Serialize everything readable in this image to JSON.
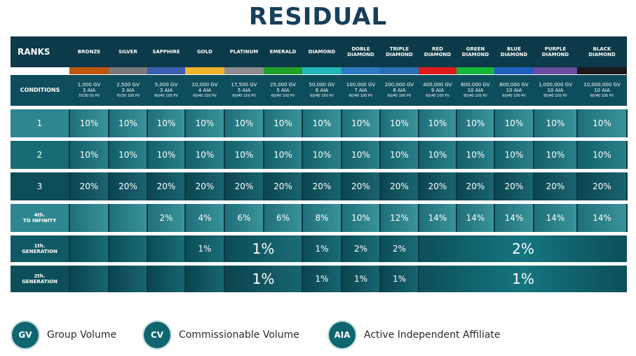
{
  "title": "RESIDUAL",
  "header": {
    "ranks_label": "RANKS",
    "ranks": [
      {
        "name": [
          "BRONZE"
        ],
        "color": "#c0550e"
      },
      {
        "name": [
          "SILVER"
        ],
        "color": "#7a7a7a"
      },
      {
        "name": [
          "SAPPHIRE"
        ],
        "color": "#3a5fb0"
      },
      {
        "name": [
          "GOLD"
        ],
        "color": "#f0b429"
      },
      {
        "name": [
          "PLATINUM"
        ],
        "color": "#8c8c8c"
      },
      {
        "name": [
          "EMERALD"
        ],
        "color": "#1fa12a"
      },
      {
        "name": [
          "DIAMOND"
        ],
        "color": "#23b6b8"
      },
      {
        "name": [
          "DOBLE",
          "DIAMOND"
        ],
        "color": "#2c7bc4"
      },
      {
        "name": [
          "TRIPLE",
          "DIAMOND"
        ],
        "color": "#2c6fb8"
      },
      {
        "name": [
          "RED",
          "DIAMOND"
        ],
        "color": "#e01a1a"
      },
      {
        "name": [
          "GREEN",
          "DIAMOND"
        ],
        "color": "#16b83a"
      },
      {
        "name": [
          "BLUE",
          "DIAMOND"
        ],
        "color": "#1f5fc0"
      },
      {
        "name": [
          "PURPLE",
          "DIAMOND"
        ],
        "color": "#6a4ca0"
      },
      {
        "name": [
          "BLACK",
          "DIAMOND"
        ],
        "color": "#1a1a1a"
      }
    ]
  },
  "conditions": {
    "label": "CONDITIONS",
    "items": [
      {
        "gv": "1,000 GV",
        "aia": "3 AIA",
        "pv": "70/30 50 PV"
      },
      {
        "gv": "2,500 GV",
        "aia": "3 AIA",
        "pv": "70/30 100 PV"
      },
      {
        "gv": "5,000 GV",
        "aia": "3 AIA",
        "pv": "60/40 100 PV"
      },
      {
        "gv": "10,000 GV",
        "aia": "4 AIA",
        "pv": "60/40 100 PV"
      },
      {
        "gv": "17,500 GV",
        "aia": "5 AIA",
        "pv": "60/40 100 PV"
      },
      {
        "gv": "25,000 GV",
        "aia": "5 AIA",
        "pv": "60/40 100 PV"
      },
      {
        "gv": "50,000 GV",
        "aia": "6 AIA",
        "pv": "60/40 100 PV"
      },
      {
        "gv": "100,000 GV",
        "aia": "7 AIA",
        "pv": "60/40 100 PV"
      },
      {
        "gv": "200,000 GV",
        "aia": "8 AIA",
        "pv": "60/40 100 PV"
      },
      {
        "gv": "400,000 GV",
        "aia": "9 AIA",
        "pv": "60/40 100 PV"
      },
      {
        "gv": "600,000 GV",
        "aia": "10 AIA",
        "pv": "60/40 100 PV"
      },
      {
        "gv": "800,000 GV",
        "aia": "10 AIA",
        "pv": "60/40 100 PV"
      },
      {
        "gv": "1,000,000 GV",
        "aia": "10 AIA",
        "pv": "60/40 100 PV"
      },
      {
        "gv": "10,000,000 GV",
        "aia": "10 AIA",
        "pv": "60/40 100 PV"
      }
    ]
  },
  "rows": {
    "level1": {
      "label": "1",
      "values": [
        "10%",
        "10%",
        "10%",
        "10%",
        "10%",
        "10%",
        "10%",
        "10%",
        "10%",
        "10%",
        "10%",
        "10%",
        "10%",
        "10%"
      ]
    },
    "level2": {
      "label": "2",
      "values": [
        "10%",
        "10%",
        "10%",
        "10%",
        "10%",
        "10%",
        "10%",
        "10%",
        "10%",
        "10%",
        "10%",
        "10%",
        "10%",
        "10%"
      ]
    },
    "level3": {
      "label": "3",
      "values": [
        "20%",
        "20%",
        "20%",
        "20%",
        "20%",
        "20%",
        "20%",
        "20%",
        "20%",
        "20%",
        "20%",
        "20%",
        "20%",
        "20%"
      ]
    },
    "level4": {
      "label_line1": "4th.",
      "label_line2": "TO INFINITY",
      "values": [
        "",
        "",
        "2%",
        "4%",
        "6%",
        "6%",
        "8%",
        "10%",
        "12%",
        "14%",
        "14%",
        "14%",
        "14%",
        "14%"
      ]
    },
    "gen1": {
      "label_line1": "1th.",
      "label_line2": "GENERATION",
      "gold": "1%",
      "plat_emerald": "1%",
      "diamond": "1%",
      "doble": "2%",
      "triple": "2%",
      "red_to_black": "2%"
    },
    "gen2": {
      "label_line1": "2th.",
      "label_line2": "GENERATION",
      "plat_emerald": "1%",
      "diamond": "1%",
      "doble": "1%",
      "triple": "1%",
      "red_to_black": "1%"
    }
  },
  "legend": [
    {
      "abbr": "GV",
      "text": "Group Volume"
    },
    {
      "abbr": "CV",
      "text": "Commissionable Volume"
    },
    {
      "abbr": "AIA",
      "text": "Active Independent Affiliate"
    }
  ]
}
